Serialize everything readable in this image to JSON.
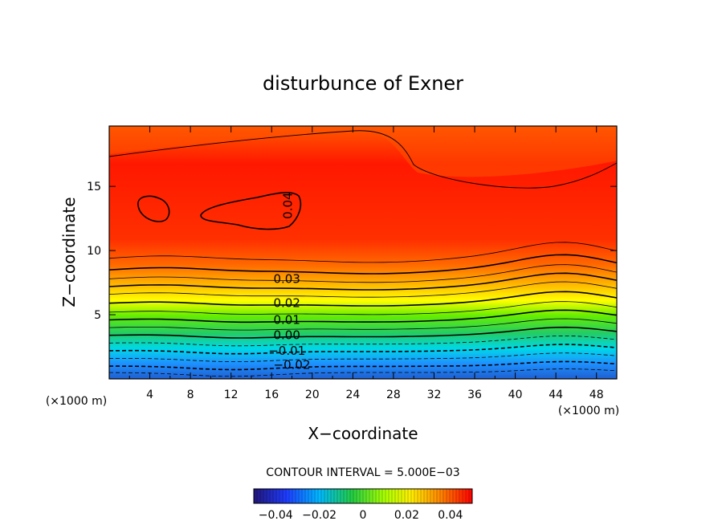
{
  "chart_data": {
    "type": "contour",
    "title": "disturbunce of Exner",
    "xlabel": "X−coordinate",
    "ylabel": "Z−coordinate",
    "x_unit": "(×1000 m)",
    "y_unit": "(×1000 m)",
    "xlim": [
      0,
      50
    ],
    "ylim": [
      0,
      19.7
    ],
    "x_ticks": [
      4,
      8,
      12,
      16,
      20,
      24,
      28,
      32,
      36,
      40,
      44,
      48
    ],
    "y_ticks": [
      5,
      10,
      15
    ],
    "contour_interval_text": "CONTOUR INTERVAL = 5.000E−03",
    "contour_labels": [
      {
        "text": "0.04",
        "x": 18,
        "z": 13.5,
        "rotate": true
      },
      {
        "text": "0.03",
        "x": 17.5,
        "z": 7.8
      },
      {
        "text": "0.02",
        "x": 17.5,
        "z": 5.9
      },
      {
        "text": "0.01",
        "x": 17.5,
        "z": 4.6
      },
      {
        "text": "0.00",
        "x": 17.5,
        "z": 3.4
      },
      {
        "text": "−0.01",
        "x": 17.5,
        "z": 2.2
      },
      {
        "text": "−0.02",
        "x": 18,
        "z": 1.1
      }
    ],
    "colorbar": {
      "range": [
        -0.05,
        0.05
      ],
      "tick_values": [
        -0.04,
        -0.02,
        0,
        0.02,
        0.04
      ],
      "tick_labels": [
        "−0.04",
        "−0.02",
        "0",
        "0.02",
        "0.04"
      ]
    },
    "colors": {
      "min": "#1a1a8c",
      "blue": "#1e90ff",
      "cyan": "#00e0e0",
      "green": "#22cc22",
      "yellow": "#ffff00",
      "orange": "#ff8800",
      "max": "#ff0000"
    }
  }
}
